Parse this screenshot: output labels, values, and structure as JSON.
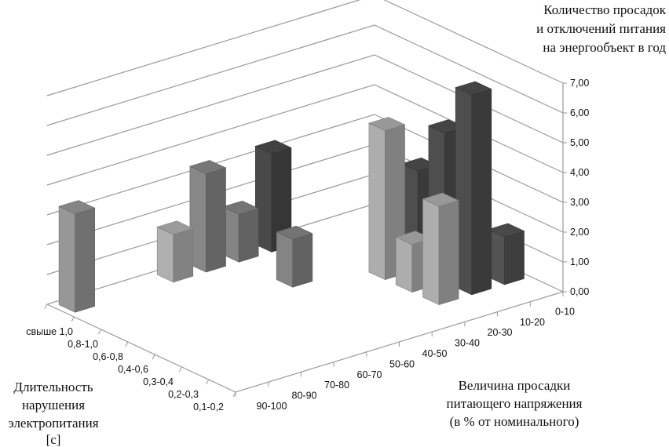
{
  "chart_data": {
    "type": "bar",
    "subtype": "3d-column",
    "zlabel": [
      "Количество просадок",
      "и отключений питания",
      "на энергообъект в год"
    ],
    "ylabel": [
      "Длительность",
      "нарушения",
      "электропитания",
      "[c]"
    ],
    "xlabel": [
      "Величина просадки",
      "питающего напряжения",
      "(в % от номинального)"
    ],
    "x_categories": [
      "90-100",
      "80-90",
      "70-80",
      "60-70",
      "50-60",
      "40-50",
      "30-40",
      "20-30",
      "10-20",
      "0-10"
    ],
    "y_categories": [
      "0,1-0,2",
      "0,2-0,3",
      "0,3-0,4",
      "0,4-0,6",
      "0,6-0,8",
      "0,8-1,0",
      "свыше 1,0"
    ],
    "z_ticks": [
      "0,00",
      "1,00",
      "2,00",
      "3,00",
      "4,00",
      "5,00",
      "6,00",
      "7,00"
    ],
    "zlim": [
      0,
      7
    ],
    "grid": true,
    "bar_colors_by_x": {
      "90-100": "#8c8c8c",
      "80-90": "#8c8c8c",
      "70-80": "#8c8c8c",
      "60-70": "#a3a3a3",
      "50-60": "#7d7d7d",
      "40-50": "#7a7a7a",
      "30-40": "#444444",
      "20-30": "#a0a0a0",
      "10-20": "#484848",
      "0-10": "#4d4d4d"
    },
    "bars": [
      {
        "x": "90-100",
        "y": "свыше 1,0",
        "value": 3.3
      },
      {
        "x": "60-70",
        "y": "свыше 1,0",
        "value": 1.6
      },
      {
        "x": "50-60",
        "y": "свыше 1,0",
        "value": 3.3
      },
      {
        "x": "40-50",
        "y": "свыше 1,0",
        "value": 1.6
      },
      {
        "x": "30-40",
        "y": "свыше 1,0",
        "value": 3.3
      },
      {
        "x": "40-50",
        "y": "0,6-0,8",
        "value": 1.6
      },
      {
        "x": "20-30",
        "y": "0,4-0,6",
        "value": 5.0
      },
      {
        "x": "10-20",
        "y": "0,4-0,6",
        "value": 3.3
      },
      {
        "x": "20-30",
        "y": "0,3-0,4",
        "value": 1.6
      },
      {
        "x": "10-20",
        "y": "0,3-0,4",
        "value": 5.0
      },
      {
        "x": "20-30",
        "y": "0,2-0,3",
        "value": 3.3
      },
      {
        "x": "10-20",
        "y": "0,2-0,3",
        "value": 6.7
      },
      {
        "x": "0-10",
        "y": "0,2-0,3",
        "value": 1.6
      }
    ]
  }
}
